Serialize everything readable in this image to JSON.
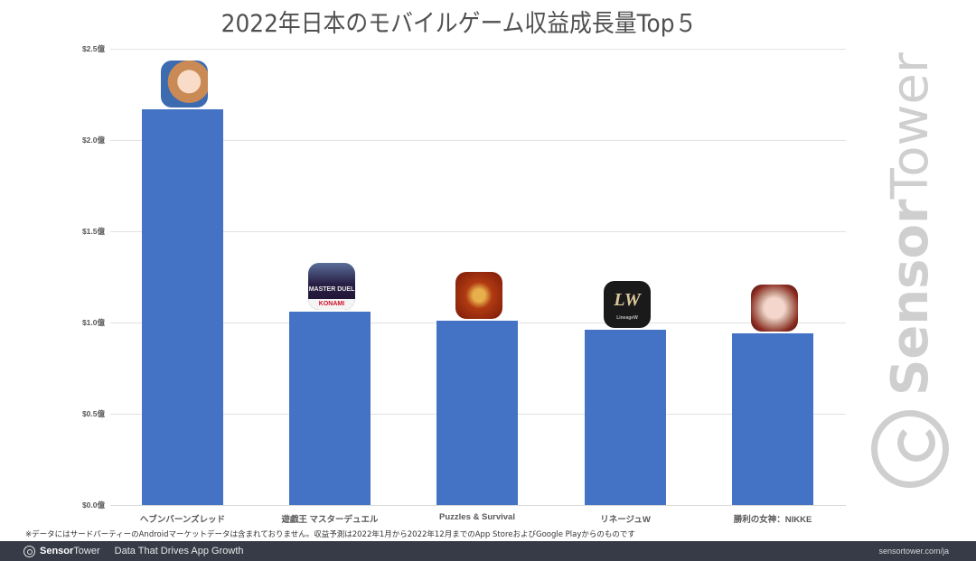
{
  "chart_data": {
    "type": "bar",
    "title": "2022年日本のモバイルゲーム収益成長量Top５",
    "xlabel": "",
    "ylabel": "",
    "ylim": [
      0,
      2.5
    ],
    "yticks": [
      "$0.0億",
      "$0.5億",
      "$1.0億",
      "$1.5億",
      "$2.0億",
      "$2.5億"
    ],
    "grid": true,
    "legend": null,
    "categories": [
      "ヘブンバーンズレッド",
      "遊戯王 マスターデュエル",
      "Puzzles & Survival",
      "リネージュW",
      "勝利の女神：NIKKE"
    ],
    "values": [
      2.17,
      1.06,
      1.01,
      0.96,
      0.94
    ],
    "unit": "億ドル",
    "bar_color": "#4472c4"
  },
  "title": "2022年日本のモバイルゲーム収益成長量Top５",
  "y_axis": {
    "ticks": [
      {
        "label": "$2.5億",
        "value": 2.5
      },
      {
        "label": "$2.0億",
        "value": 2.0
      },
      {
        "label": "$1.5億",
        "value": 1.5
      },
      {
        "label": "$1.0億",
        "value": 1.0
      },
      {
        "label": "$0.5億",
        "value": 0.5
      },
      {
        "label": "$0.0億",
        "value": 0.0
      }
    ]
  },
  "bars": [
    {
      "label": "ヘブンバーンズレッド",
      "icon": "heaven-burns-red-app-icon"
    },
    {
      "label": "遊戯王 マスターデュエル",
      "icon": "yugioh-master-duel-app-icon",
      "icon_text_1": "MASTER DUEL",
      "icon_text_2": "KONAMI"
    },
    {
      "label": "Puzzles & Survival",
      "icon": "puzzles-survival-app-icon"
    },
    {
      "label": "リネージュW",
      "icon": "lineage-w-app-icon",
      "icon_text_1": "LW",
      "icon_text_2": "LineageW"
    },
    {
      "label": "勝利の女神：NIKKE",
      "icon": "nikke-app-icon"
    }
  ],
  "watermark": {
    "bold": "Sensor",
    "regular": "Tower"
  },
  "footnote": "※データにはサードパーティーのAndroidマーケットデータは含まれておりません。収益予測は2022年1月から2022年12月までのApp StoreおよびGoogle Playからのものです",
  "footer": {
    "brand_bold": "Sensor",
    "brand_regular": "Tower",
    "tagline": "Data That Drives App Growth",
    "url": "sensortower.com/ja"
  }
}
